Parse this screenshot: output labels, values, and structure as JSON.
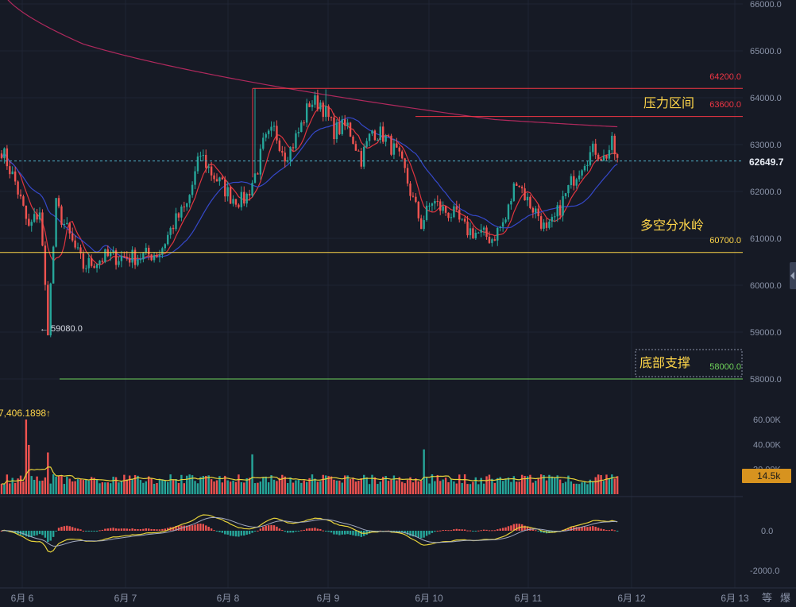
{
  "chart_data": {
    "type": "candlestick",
    "price_axis": {
      "range": [
        57800,
        66100
      ],
      "ticks": [
        "66000.0",
        "65000.0",
        "64000.0",
        "63000.0",
        "62000.0",
        "61000.0",
        "60000.0",
        "59000.0",
        "58000.0"
      ]
    },
    "x_axis": {
      "ticks": [
        "6月 6",
        "6月 7",
        "6月 8",
        "6月 9",
        "6月 10",
        "6月 11",
        "6月 12",
        "6月 13"
      ]
    },
    "levels": [
      {
        "value": 64200,
        "label": "64200.0",
        "color": "#f23645"
      },
      {
        "value": 63600,
        "label": "63600.0",
        "color": "#f23645"
      },
      {
        "value": 60700,
        "label": "60700.0",
        "color": "#ffd64a"
      },
      {
        "value": 58000,
        "label": "58000.0",
        "color": "#6fd35a"
      }
    ],
    "current_price": {
      "value": 62649.7,
      "label": "62649.7"
    },
    "annotations": {
      "resistance": "压力区间",
      "watershed": "多空分水岭",
      "support": "底部支撑",
      "low_marker": "← 59080.0"
    },
    "volume": {
      "readout": "7,406.1898↑",
      "ticks": [
        "60.00K",
        "40.00K",
        "20.00K"
      ],
      "current": "14.5k",
      "range": [
        0,
        65000
      ]
    },
    "macd": {
      "ticks": [
        "0.0",
        "-2000.0"
      ],
      "range": [
        -2600,
        2100
      ]
    },
    "bottom_labels": [
      "等",
      "爆"
    ],
    "colors": {
      "up": "#26a69a",
      "down": "#ef5350",
      "ma_red": "#e0353f",
      "ma_blue": "#3548c9",
      "ma_pink": "#b0295d",
      "volume_ma": "#e6d23a",
      "macd_dif": "#e6d23a",
      "macd_dea": "#a0a8c0"
    },
    "candle_keypoints": [
      [
        0,
        62900
      ],
      [
        5,
        62200
      ],
      [
        10,
        61200
      ],
      [
        14,
        61600
      ],
      [
        17,
        59100
      ],
      [
        20,
        61700
      ],
      [
        26,
        60900
      ],
      [
        30,
        60400
      ],
      [
        38,
        60600
      ],
      [
        50,
        60600
      ],
      [
        58,
        60700
      ],
      [
        63,
        61300
      ],
      [
        68,
        61700
      ],
      [
        73,
        62800
      ],
      [
        77,
        62400
      ],
      [
        84,
        61900
      ],
      [
        88,
        61800
      ],
      [
        90,
        61900
      ],
      [
        94,
        62500
      ],
      [
        96,
        63000
      ],
      [
        100,
        63300
      ],
      [
        104,
        62800
      ],
      [
        106,
        62900
      ],
      [
        110,
        63400
      ],
      [
        113,
        63900
      ],
      [
        117,
        63900
      ],
      [
        122,
        63300
      ],
      [
        127,
        63400
      ],
      [
        132,
        62700
      ],
      [
        136,
        63300
      ],
      [
        140,
        63200
      ],
      [
        145,
        62800
      ],
      [
        148,
        62400
      ],
      [
        151,
        61800
      ],
      [
        154,
        61300
      ],
      [
        158,
        61800
      ],
      [
        162,
        61600
      ],
      [
        166,
        61500
      ],
      [
        170,
        61200
      ],
      [
        175,
        61100
      ],
      [
        180,
        61000
      ],
      [
        185,
        61400
      ],
      [
        189,
        62300
      ],
      [
        193,
        61800
      ],
      [
        197,
        61500
      ],
      [
        200,
        61100
      ],
      [
        203,
        61400
      ],
      [
        206,
        61800
      ],
      [
        210,
        62300
      ],
      [
        214,
        62700
      ],
      [
        218,
        62900
      ],
      [
        221,
        62700
      ],
      [
        224,
        63000
      ],
      [
        226,
        62650
      ]
    ]
  }
}
